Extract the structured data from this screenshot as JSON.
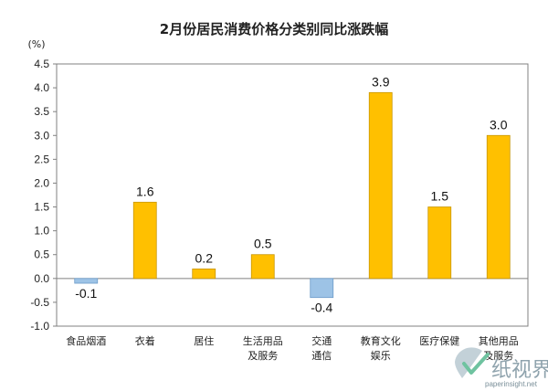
{
  "chart_data": {
    "type": "bar",
    "title": "2月份居民消费价格分类别同比涨跌幅",
    "unit": "(%)",
    "categories": [
      [
        "食品烟酒"
      ],
      [
        "衣着"
      ],
      [
        "居住"
      ],
      [
        "生活用品",
        "及服务"
      ],
      [
        "交通",
        "通信"
      ],
      [
        "教育文化",
        "娱乐"
      ],
      [
        "医疗保健"
      ],
      [
        "其他用品",
        "及服务"
      ]
    ],
    "values": [
      -0.1,
      1.6,
      0.2,
      0.5,
      -0.4,
      3.9,
      1.5,
      3.0
    ],
    "value_labels": [
      "-0.1",
      "1.6",
      "0.2",
      "0.5",
      "-0.4",
      "3.9",
      "1.5",
      "3.0"
    ],
    "ylim": [
      -1.0,
      4.5
    ],
    "yticks": [
      4.5,
      4.0,
      3.5,
      3.0,
      2.5,
      2.0,
      1.5,
      1.0,
      0.5,
      0.0,
      -0.5,
      -1.0
    ],
    "ytick_labels": [
      "4.5",
      "4.0",
      "3.5",
      "3.0",
      "2.5",
      "2.0",
      "1.5",
      "1.0",
      "0.5",
      "0.0",
      "-0.5",
      "-1.0"
    ],
    "grid": false,
    "legend": "none",
    "colors": {
      "positive": "#FFC000",
      "positive_stroke": "#C99600",
      "negative": "#9DC3E6",
      "negative_stroke": "#6C9BC9",
      "axis": "#808080"
    }
  },
  "watermark": {
    "text": "纸视界",
    "url": "paperinsight.net",
    "logo_icon": "paperinsight-logo-icon"
  }
}
